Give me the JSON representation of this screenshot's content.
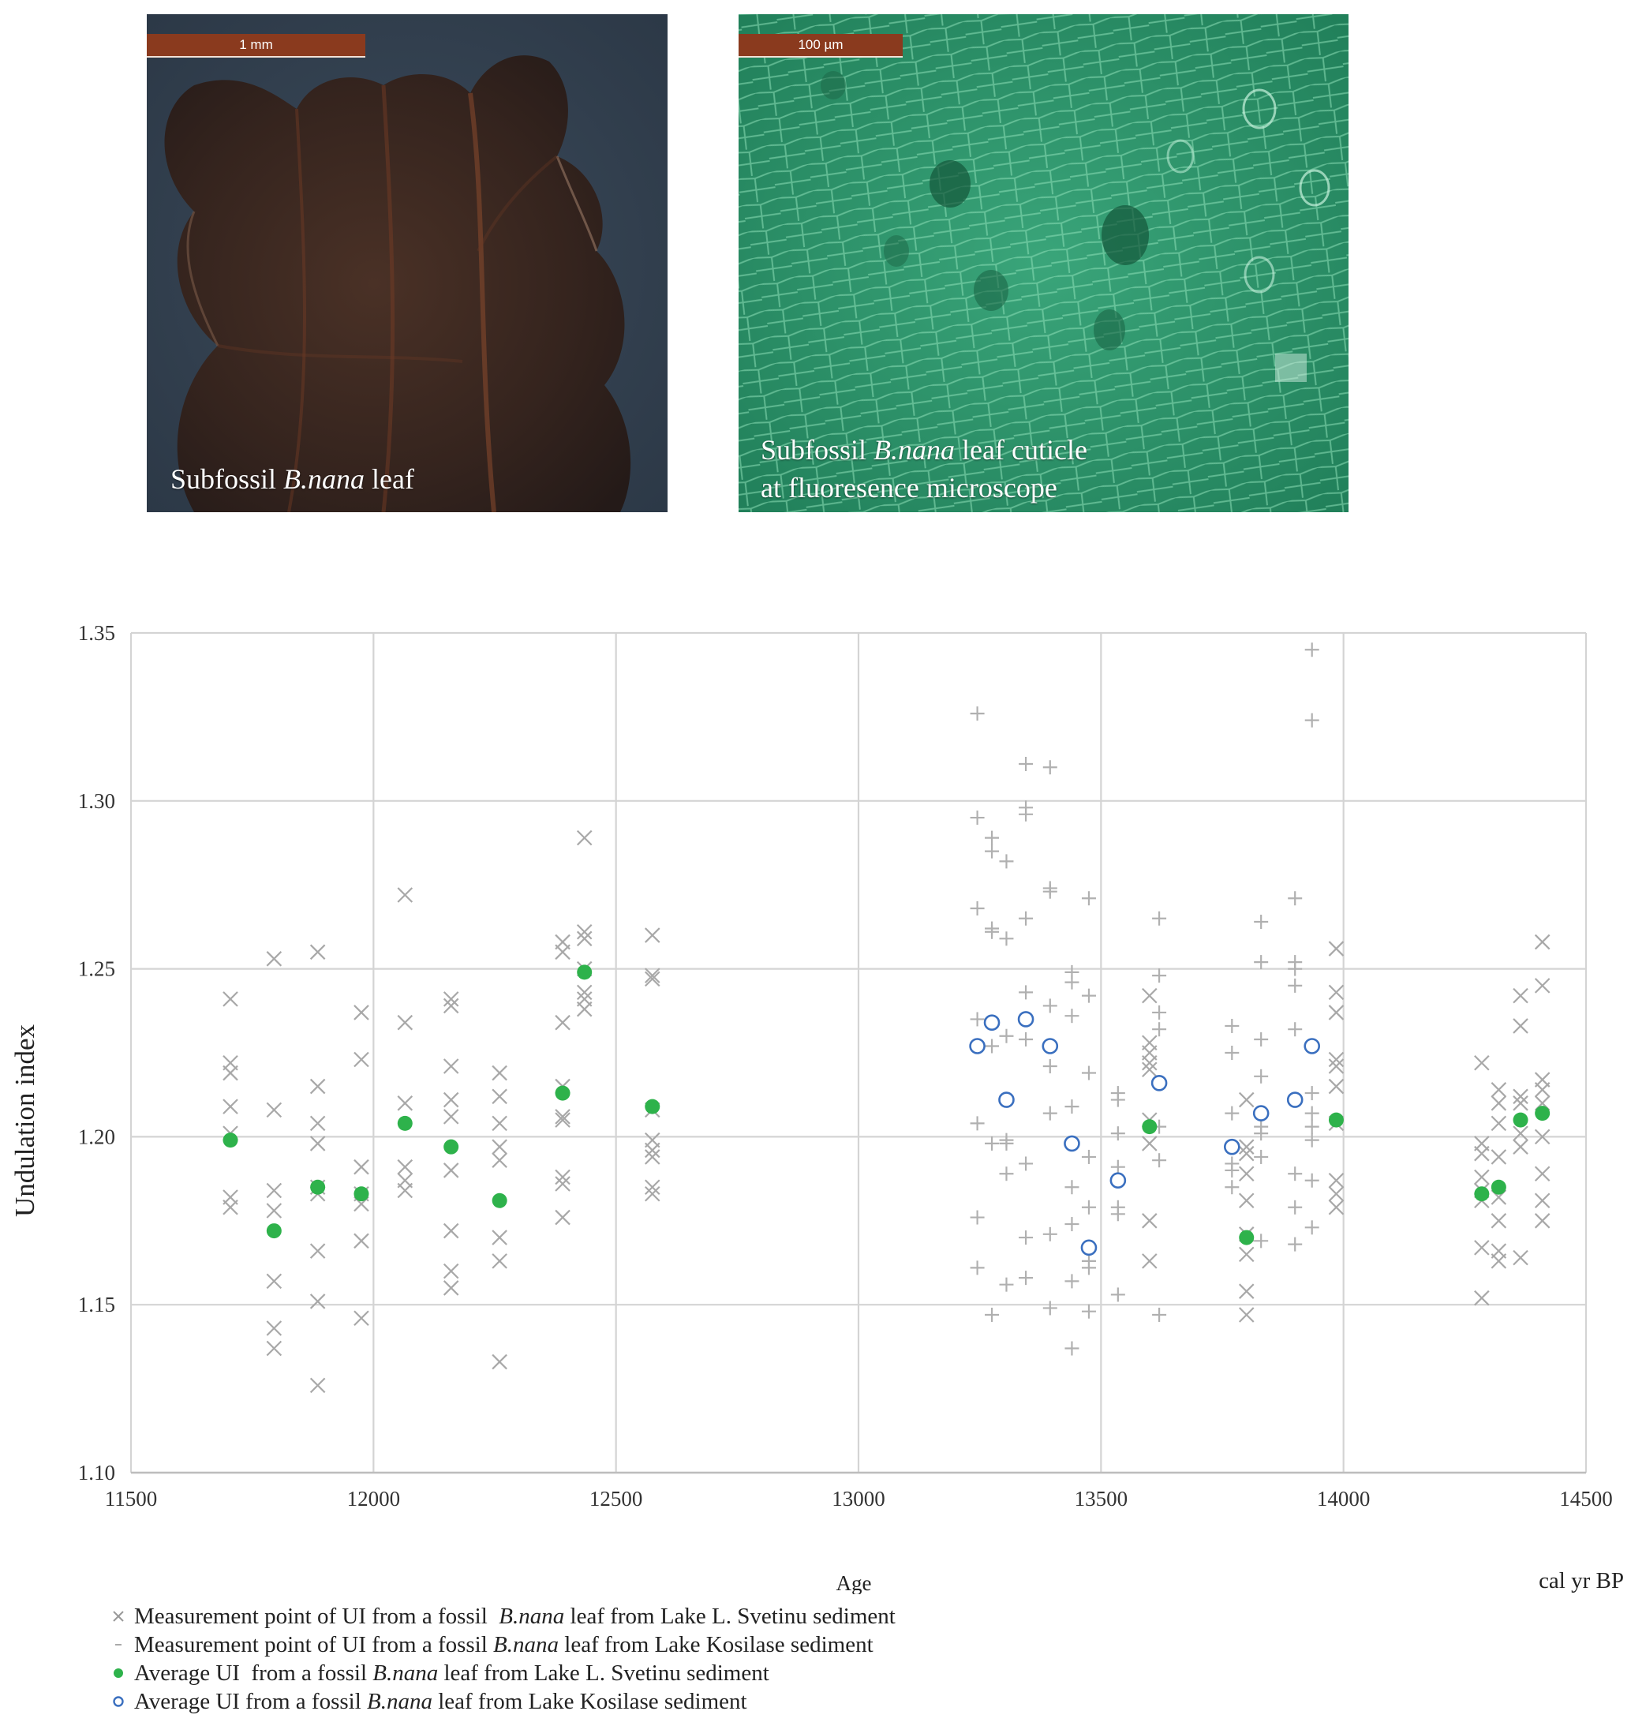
{
  "photos": [
    {
      "id": "leaf",
      "scale_label": "1 mm",
      "caption_parts": [
        {
          "text": "Subfossil ",
          "italic": false
        },
        {
          "text": "B.nana",
          "italic": true
        },
        {
          "text": " leaf",
          "italic": false
        }
      ]
    },
    {
      "id": "cuticle",
      "scale_label": "100 µm",
      "caption_parts": [
        {
          "text": "Subfossil ",
          "italic": false
        },
        {
          "text": "B.nana",
          "italic": true
        },
        {
          "text": " leaf cuticle",
          "italic": false
        },
        {
          "text": "\nat fluoresence microscope",
          "italic": false
        }
      ]
    }
  ],
  "legend": [
    {
      "symbol": "x",
      "parts": [
        {
          "text": "Measurement point of UI from a fossil  ",
          "italic": false
        },
        {
          "text": "B.nana",
          "italic": true
        },
        {
          "text": " leaf from Lake L. Svetinu sediment",
          "italic": false
        }
      ]
    },
    {
      "symbol": "dash",
      "parts": [
        {
          "text": "Measurement point of UI from a fossil ",
          "italic": false
        },
        {
          "text": "B.nana",
          "italic": true
        },
        {
          "text": " leaf from Lake Kosilase sediment",
          "italic": false
        }
      ]
    },
    {
      "symbol": "filled-green",
      "parts": [
        {
          "text": "Average UI  from a fossil ",
          "italic": false
        },
        {
          "text": "B.nana",
          "italic": true
        },
        {
          "text": " leaf from Lake L. Svetinu sediment",
          "italic": false
        }
      ]
    },
    {
      "symbol": "open-blue",
      "parts": [
        {
          "text": "Average UI from a fossil ",
          "italic": false
        },
        {
          "text": "B.nana",
          "italic": true
        },
        {
          "text": " leaf from Lake Kosilase sediment",
          "italic": false
        }
      ]
    }
  ],
  "colors": {
    "svetinu_points": "#a8a8a8",
    "kosilase_points": "#b0b0b0",
    "svetinu_avg": "#2eb24b",
    "kosilase_avg": "#3a6fbf",
    "grid": "#d4d4d4"
  },
  "chart_data": {
    "type": "scatter",
    "xlabel": "Age",
    "xunit": "cal yr BP",
    "ylabel": "Undulation index",
    "xlim": [
      11500,
      14500
    ],
    "ylim": [
      1.1,
      1.35
    ],
    "xticks": [
      "11500",
      "12000",
      "12500",
      "13000",
      "13500",
      "14000",
      "14500"
    ],
    "yticks": [
      "1.10",
      "1.15",
      "1.20",
      "1.25",
      "1.30",
      "1.35"
    ],
    "grid": true,
    "series": [
      {
        "marker": "x",
        "points": [
          [
            11705,
            1.241
          ],
          [
            11705,
            1.222
          ],
          [
            11705,
            1.219
          ],
          [
            11705,
            1.209
          ],
          [
            11705,
            1.201
          ],
          [
            11705,
            1.182
          ],
          [
            11705,
            1.179
          ],
          [
            11795,
            1.253
          ],
          [
            11795,
            1.208
          ],
          [
            11795,
            1.184
          ],
          [
            11795,
            1.178
          ],
          [
            11795,
            1.157
          ],
          [
            11795,
            1.143
          ],
          [
            11795,
            1.137
          ],
          [
            11885,
            1.255
          ],
          [
            11885,
            1.215
          ],
          [
            11885,
            1.204
          ],
          [
            11885,
            1.198
          ],
          [
            11885,
            1.185
          ],
          [
            11885,
            1.183
          ],
          [
            11885,
            1.166
          ],
          [
            11885,
            1.151
          ],
          [
            11885,
            1.126
          ],
          [
            11975,
            1.237
          ],
          [
            11975,
            1.223
          ],
          [
            11975,
            1.191
          ],
          [
            11975,
            1.183
          ],
          [
            11975,
            1.18
          ],
          [
            11975,
            1.169
          ],
          [
            11975,
            1.146
          ],
          [
            12065,
            1.272
          ],
          [
            12065,
            1.234
          ],
          [
            12065,
            1.21
          ],
          [
            12065,
            1.191
          ],
          [
            12065,
            1.187
          ],
          [
            12065,
            1.184
          ],
          [
            12160,
            1.241
          ],
          [
            12160,
            1.239
          ],
          [
            12160,
            1.221
          ],
          [
            12160,
            1.211
          ],
          [
            12160,
            1.206
          ],
          [
            12160,
            1.19
          ],
          [
            12160,
            1.172
          ],
          [
            12160,
            1.16
          ],
          [
            12160,
            1.155
          ],
          [
            12260,
            1.219
          ],
          [
            12260,
            1.212
          ],
          [
            12260,
            1.204
          ],
          [
            12260,
            1.197
          ],
          [
            12260,
            1.193
          ],
          [
            12260,
            1.17
          ],
          [
            12260,
            1.163
          ],
          [
            12260,
            1.133
          ],
          [
            12390,
            1.258
          ],
          [
            12390,
            1.255
          ],
          [
            12390,
            1.234
          ],
          [
            12390,
            1.215
          ],
          [
            12390,
            1.206
          ],
          [
            12390,
            1.205
          ],
          [
            12390,
            1.188
          ],
          [
            12390,
            1.186
          ],
          [
            12390,
            1.176
          ],
          [
            12435,
            1.289
          ],
          [
            12435,
            1.261
          ],
          [
            12435,
            1.259
          ],
          [
            12435,
            1.25
          ],
          [
            12435,
            1.243
          ],
          [
            12435,
            1.241
          ],
          [
            12435,
            1.238
          ],
          [
            12575,
            1.26
          ],
          [
            12575,
            1.248
          ],
          [
            12575,
            1.247
          ],
          [
            12575,
            1.208
          ],
          [
            12575,
            1.199
          ],
          [
            12575,
            1.196
          ],
          [
            12575,
            1.194
          ],
          [
            12575,
            1.185
          ],
          [
            12575,
            1.183
          ],
          [
            13600,
            1.242
          ],
          [
            13600,
            1.228
          ],
          [
            13600,
            1.225
          ],
          [
            13600,
            1.222
          ],
          [
            13600,
            1.22
          ],
          [
            13600,
            1.205
          ],
          [
            13600,
            1.198
          ],
          [
            13600,
            1.175
          ],
          [
            13600,
            1.163
          ],
          [
            13800,
            1.211
          ],
          [
            13800,
            1.197
          ],
          [
            13800,
            1.195
          ],
          [
            13800,
            1.189
          ],
          [
            13800,
            1.181
          ],
          [
            13800,
            1.171
          ],
          [
            13800,
            1.165
          ],
          [
            13800,
            1.154
          ],
          [
            13800,
            1.147
          ],
          [
            13985,
            1.256
          ],
          [
            13985,
            1.243
          ],
          [
            13985,
            1.237
          ],
          [
            13985,
            1.223
          ],
          [
            13985,
            1.221
          ],
          [
            13985,
            1.215
          ],
          [
            13985,
            1.204
          ],
          [
            13985,
            1.187
          ],
          [
            13985,
            1.183
          ],
          [
            13985,
            1.179
          ],
          [
            14285,
            1.222
          ],
          [
            14285,
            1.198
          ],
          [
            14285,
            1.195
          ],
          [
            14285,
            1.188
          ],
          [
            14285,
            1.184
          ],
          [
            14285,
            1.181
          ],
          [
            14285,
            1.167
          ],
          [
            14285,
            1.152
          ],
          [
            14320,
            1.214
          ],
          [
            14320,
            1.21
          ],
          [
            14320,
            1.204
          ],
          [
            14320,
            1.194
          ],
          [
            14320,
            1.182
          ],
          [
            14320,
            1.175
          ],
          [
            14320,
            1.166
          ],
          [
            14320,
            1.163
          ],
          [
            14365,
            1.242
          ],
          [
            14365,
            1.233
          ],
          [
            14365,
            1.212
          ],
          [
            14365,
            1.21
          ],
          [
            14365,
            1.201
          ],
          [
            14365,
            1.197
          ],
          [
            14365,
            1.164
          ],
          [
            14410,
            1.258
          ],
          [
            14410,
            1.245
          ],
          [
            14410,
            1.217
          ],
          [
            14410,
            1.214
          ],
          [
            14410,
            1.21
          ],
          [
            14410,
            1.2
          ],
          [
            14410,
            1.189
          ],
          [
            14410,
            1.181
          ],
          [
            14410,
            1.175
          ]
        ]
      },
      {
        "marker": "plus",
        "points": [
          [
            13245,
            1.326
          ],
          [
            13245,
            1.295
          ],
          [
            13245,
            1.268
          ],
          [
            13245,
            1.235
          ],
          [
            13245,
            1.204
          ],
          [
            13245,
            1.176
          ],
          [
            13245,
            1.161
          ],
          [
            13275,
            1.289
          ],
          [
            13275,
            1.285
          ],
          [
            13275,
            1.262
          ],
          [
            13275,
            1.261
          ],
          [
            13275,
            1.227
          ],
          [
            13275,
            1.198
          ],
          [
            13275,
            1.147
          ],
          [
            13305,
            1.282
          ],
          [
            13305,
            1.259
          ],
          [
            13305,
            1.23
          ],
          [
            13305,
            1.199
          ],
          [
            13305,
            1.198
          ],
          [
            13305,
            1.189
          ],
          [
            13305,
            1.156
          ],
          [
            13345,
            1.311
          ],
          [
            13345,
            1.298
          ],
          [
            13345,
            1.296
          ],
          [
            13345,
            1.265
          ],
          [
            13345,
            1.243
          ],
          [
            13345,
            1.229
          ],
          [
            13345,
            1.192
          ],
          [
            13345,
            1.17
          ],
          [
            13345,
            1.158
          ],
          [
            13395,
            1.31
          ],
          [
            13395,
            1.274
          ],
          [
            13395,
            1.273
          ],
          [
            13395,
            1.239
          ],
          [
            13395,
            1.221
          ],
          [
            13395,
            1.207
          ],
          [
            13395,
            1.171
          ],
          [
            13395,
            1.149
          ],
          [
            13440,
            1.249
          ],
          [
            13440,
            1.246
          ],
          [
            13440,
            1.236
          ],
          [
            13440,
            1.209
          ],
          [
            13440,
            1.185
          ],
          [
            13440,
            1.174
          ],
          [
            13440,
            1.157
          ],
          [
            13440,
            1.137
          ],
          [
            13475,
            1.271
          ],
          [
            13475,
            1.242
          ],
          [
            13475,
            1.219
          ],
          [
            13475,
            1.194
          ],
          [
            13475,
            1.179
          ],
          [
            13475,
            1.163
          ],
          [
            13475,
            1.161
          ],
          [
            13475,
            1.148
          ],
          [
            13535,
            1.213
          ],
          [
            13535,
            1.211
          ],
          [
            13535,
            1.201
          ],
          [
            13535,
            1.191
          ],
          [
            13535,
            1.179
          ],
          [
            13535,
            1.177
          ],
          [
            13535,
            1.153
          ],
          [
            13620,
            1.265
          ],
          [
            13620,
            1.248
          ],
          [
            13620,
            1.237
          ],
          [
            13620,
            1.232
          ],
          [
            13620,
            1.203
          ],
          [
            13620,
            1.193
          ],
          [
            13620,
            1.147
          ],
          [
            13770,
            1.233
          ],
          [
            13770,
            1.225
          ],
          [
            13770,
            1.207
          ],
          [
            13770,
            1.197
          ],
          [
            13770,
            1.192
          ],
          [
            13770,
            1.19
          ],
          [
            13770,
            1.185
          ],
          [
            13830,
            1.264
          ],
          [
            13830,
            1.252
          ],
          [
            13830,
            1.229
          ],
          [
            13830,
            1.218
          ],
          [
            13830,
            1.203
          ],
          [
            13830,
            1.201
          ],
          [
            13830,
            1.194
          ],
          [
            13830,
            1.169
          ],
          [
            13900,
            1.271
          ],
          [
            13900,
            1.252
          ],
          [
            13900,
            1.25
          ],
          [
            13900,
            1.245
          ],
          [
            13900,
            1.232
          ],
          [
            13900,
            1.189
          ],
          [
            13900,
            1.179
          ],
          [
            13900,
            1.168
          ],
          [
            13935,
            1.345
          ],
          [
            13935,
            1.324
          ],
          [
            13935,
            1.213
          ],
          [
            13935,
            1.207
          ],
          [
            13935,
            1.203
          ],
          [
            13935,
            1.199
          ],
          [
            13935,
            1.187
          ],
          [
            13935,
            1.173
          ]
        ]
      },
      {
        "marker": "filled-green",
        "points": [
          [
            11705,
            1.199
          ],
          [
            11795,
            1.172
          ],
          [
            11885,
            1.185
          ],
          [
            11975,
            1.183
          ],
          [
            12065,
            1.204
          ],
          [
            12160,
            1.197
          ],
          [
            12260,
            1.181
          ],
          [
            12390,
            1.213
          ],
          [
            12435,
            1.249
          ],
          [
            12575,
            1.209
          ],
          [
            13600,
            1.203
          ],
          [
            13800,
            1.17
          ],
          [
            13985,
            1.205
          ],
          [
            14285,
            1.183
          ],
          [
            14320,
            1.185
          ],
          [
            14365,
            1.205
          ],
          [
            14410,
            1.207
          ]
        ]
      },
      {
        "marker": "open-blue",
        "points": [
          [
            13245,
            1.227
          ],
          [
            13275,
            1.234
          ],
          [
            13305,
            1.211
          ],
          [
            13345,
            1.235
          ],
          [
            13395,
            1.227
          ],
          [
            13440,
            1.198
          ],
          [
            13475,
            1.167
          ],
          [
            13535,
            1.187
          ],
          [
            13620,
            1.216
          ],
          [
            13770,
            1.197
          ],
          [
            13830,
            1.207
          ],
          [
            13900,
            1.211
          ],
          [
            13935,
            1.227
          ]
        ]
      }
    ]
  }
}
